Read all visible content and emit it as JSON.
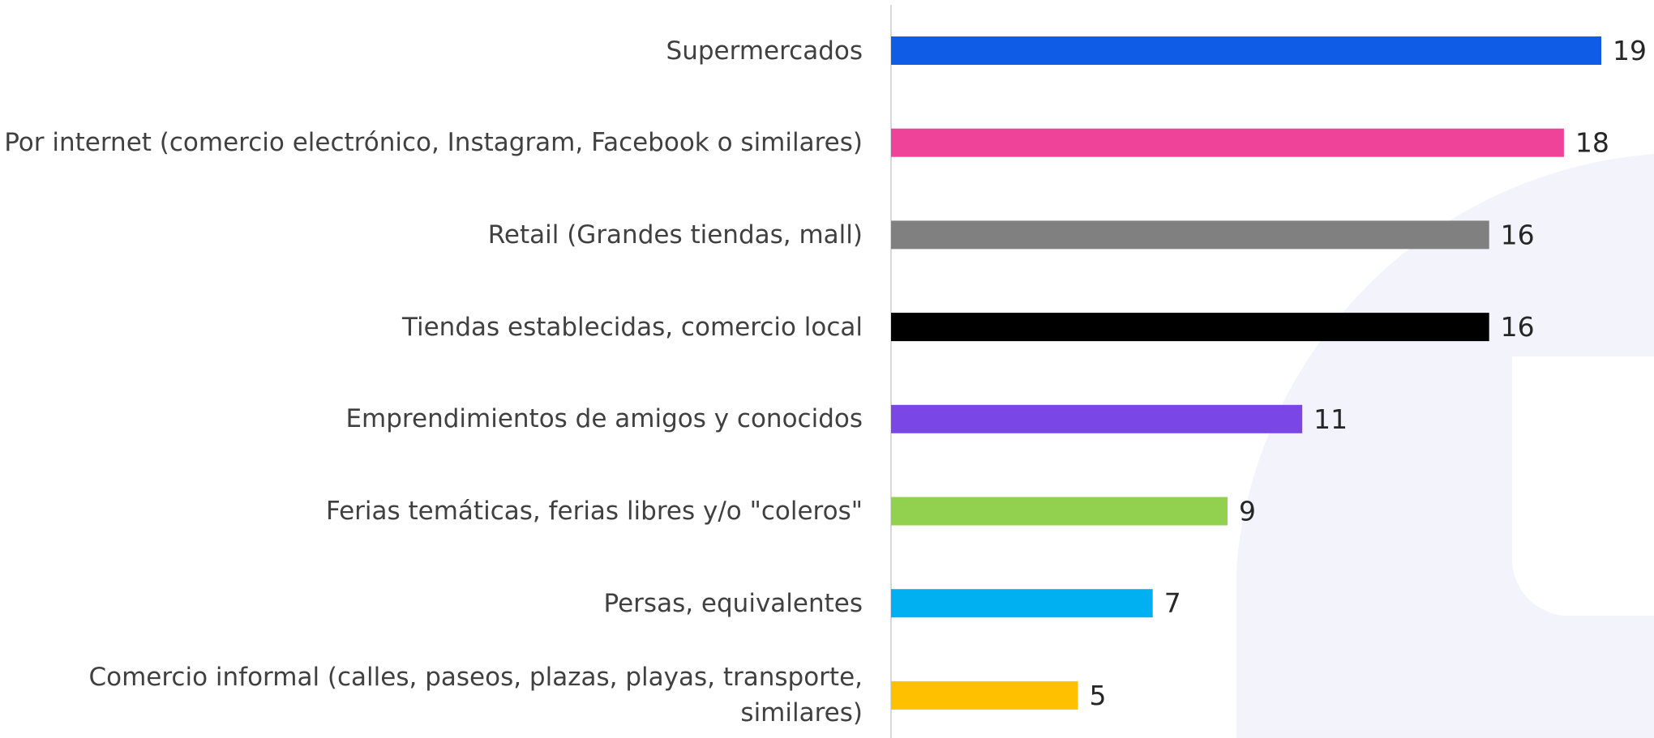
{
  "chart_data": {
    "type": "bar",
    "orientation": "horizontal",
    "categories": [
      "Supermercados",
      "Por internet (comercio electrónico, Instagram, Facebook o similares)",
      "Retail (Grandes tiendas, mall)",
      "Tiendas establecidas, comercio local",
      "Emprendimientos de amigos y conocidos",
      "Ferias temáticas, ferias libres y/o \"coleros\"",
      "Persas, equivalentes",
      "Comercio informal (calles, paseos, plazas, playas, transporte, similares)"
    ],
    "values": [
      19,
      18,
      16,
      16,
      11,
      9,
      7,
      5
    ],
    "colors": [
      "#0f5ce6",
      "#ee4399",
      "#808080",
      "#000000",
      "#7b46e6",
      "#92d050",
      "#00b0f0",
      "#ffc000"
    ]
  }
}
